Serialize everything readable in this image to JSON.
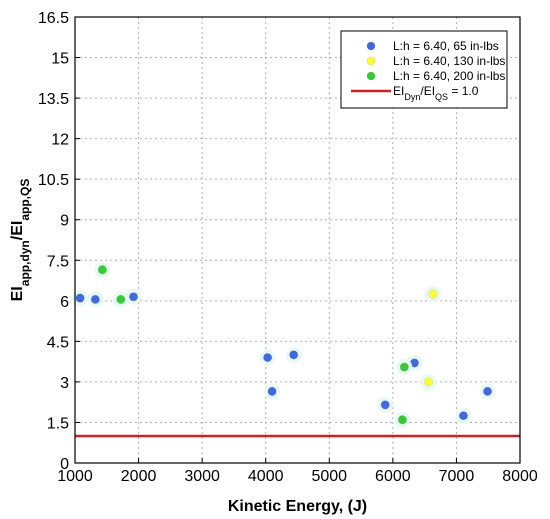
{
  "chart_data": {
    "type": "scatter",
    "xlabel": "Kinetic Energy, (J)",
    "ylabel": {
      "parts": [
        {
          "text": "EI",
          "sub": false
        },
        {
          "text": "app,dyn",
          "sub": true
        },
        {
          "text": "/EI",
          "sub": false
        },
        {
          "text": "app,QS",
          "sub": true
        }
      ]
    },
    "xlim": [
      1000,
      8000
    ],
    "ylim": [
      0,
      16.5
    ],
    "xticks": [
      "1000",
      "2000",
      "3000",
      "4000",
      "5000",
      "6000",
      "7000",
      "8000"
    ],
    "yticks": [
      "0",
      "1.5",
      "3",
      "4.5",
      "6",
      "7.5",
      "9",
      "10.5",
      "12",
      "13.5",
      "15",
      "16.5"
    ],
    "grid": true,
    "legend_position": "top-right",
    "series": [
      {
        "name": "L:h = 6.40, 65 in-lbs",
        "color": "#4169e1",
        "points": [
          {
            "x": 1080,
            "y": 6.1
          },
          {
            "x": 1320,
            "y": 6.05
          },
          {
            "x": 1920,
            "y": 6.15
          },
          {
            "x": 4030,
            "y": 3.9
          },
          {
            "x": 4100,
            "y": 2.65
          },
          {
            "x": 4440,
            "y": 4.0
          },
          {
            "x": 5880,
            "y": 2.15
          },
          {
            "x": 6340,
            "y": 3.7
          },
          {
            "x": 7110,
            "y": 1.75
          },
          {
            "x": 7490,
            "y": 2.65
          }
        ]
      },
      {
        "name": "L:h = 6.40, 130 in-lbs",
        "color": "#ffff33",
        "points": [
          {
            "x": 6560,
            "y": 3.0
          },
          {
            "x": 6630,
            "y": 6.25
          }
        ]
      },
      {
        "name": "L:h = 6.40, 200 in-lbs",
        "color": "#33cc33",
        "points": [
          {
            "x": 1430,
            "y": 7.15
          },
          {
            "x": 1720,
            "y": 6.05
          },
          {
            "x": 6180,
            "y": 3.55
          },
          {
            "x": 6150,
            "y": 1.6
          }
        ]
      }
    ],
    "reference_line": {
      "y": 1.0,
      "color": "#cc2222",
      "label": {
        "parts": [
          {
            "text": "EI",
            "sub": false
          },
          {
            "text": "Dyn",
            "sub": true
          },
          {
            "text": "/EI",
            "sub": false
          },
          {
            "text": "QS",
            "sub": true
          },
          {
            "text": " = 1.0",
            "sub": false
          }
        ]
      }
    }
  }
}
